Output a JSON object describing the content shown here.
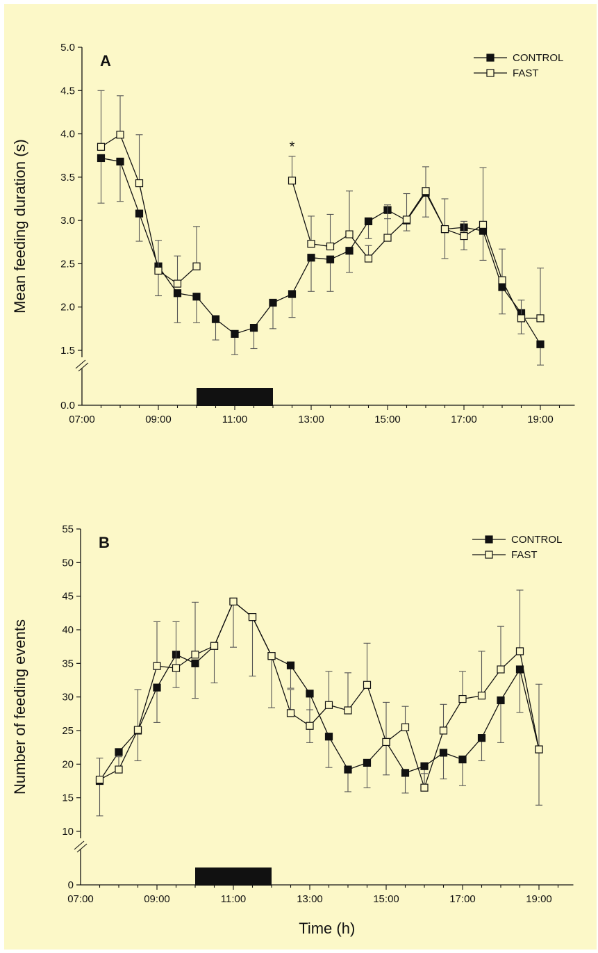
{
  "figure": {
    "background": "#fcf8c8",
    "ink": "#111111",
    "errorbar_color": "#555555"
  },
  "chart_data": [
    {
      "type": "line",
      "panel_label": "A",
      "ylabel": "Mean feeding duration (s)",
      "xlabel": "",
      "x_tick_labels": [
        "07:00",
        "09:00",
        "11:00",
        "13:00",
        "15:00",
        "17:00",
        "19:00"
      ],
      "x_ticks": [
        7,
        9,
        11,
        13,
        15,
        17,
        19
      ],
      "xlim": [
        7,
        19.9
      ],
      "y_tick_labels": [
        "5.0",
        "4.5",
        "4.0",
        "3.5",
        "3.0",
        "2.5",
        "2.0",
        "1.5",
        "0.0"
      ],
      "y_ticks": [
        5.0,
        4.5,
        4.0,
        3.5,
        3.0,
        2.5,
        2.0,
        1.5
      ],
      "ylim": [
        1.5,
        5.0
      ],
      "y_break": true,
      "y_zero_label": "0.0",
      "dark_period": [
        10,
        12
      ],
      "legend": {
        "position": "top-right",
        "entries": [
          "CONTROL",
          "FAST"
        ]
      },
      "annotations": [
        {
          "text": "*",
          "x": 12.5,
          "y": 3.85
        }
      ],
      "series": [
        {
          "name": "CONTROL",
          "marker": "filled-square",
          "x": [
            7.5,
            8.0,
            8.5,
            9.0,
            9.5,
            10.0,
            10.5,
            11.0,
            11.5,
            12.0,
            12.5,
            13.0,
            13.5,
            14.0,
            14.5,
            15.0,
            15.5,
            16.0,
            16.5,
            17.0,
            17.5,
            18.0,
            18.5,
            19.0
          ],
          "y": [
            3.72,
            3.68,
            3.08,
            2.47,
            2.16,
            2.12,
            1.86,
            1.69,
            1.76,
            2.05,
            2.15,
            2.57,
            2.55,
            2.65,
            2.99,
            3.12,
            3.0,
            3.32,
            2.9,
            2.92,
            2.88,
            2.23,
            1.93,
            1.57
          ],
          "error": [
            0.52,
            0.46,
            0.32,
            0.34,
            0.34,
            0.3,
            0.24,
            0.24,
            0.24,
            0.3,
            0.27,
            0.39,
            0.37,
            0.25,
            0.2,
            0.1,
            0.12,
            0.28,
            0.34,
            0.26,
            0.34,
            0.31,
            0.24,
            0.24
          ]
        },
        {
          "name": "FAST",
          "marker": "open-square",
          "segments": [
            {
              "x": [
                7.5,
                8.0,
                8.5,
                9.0,
                9.5,
                10.0
              ],
              "y": [
                3.85,
                3.99,
                3.43,
                2.42,
                2.27,
                2.47
              ],
              "error": [
                0.65,
                0.45,
                0.56,
                0.35,
                0.32,
                0.46
              ]
            },
            {
              "x": [
                12.5,
                13.0,
                13.5,
                14.0,
                14.5,
                15.0,
                15.5,
                16.0,
                16.5,
                17.0,
                17.5,
                18.0,
                18.5,
                19.0
              ],
              "y": [
                3.46,
                2.73,
                2.7,
                2.84,
                2.56,
                2.8,
                3.01,
                3.34,
                2.9,
                2.82,
                2.95,
                2.31,
                1.87,
                1.87
              ],
              "error": [
                0.28,
                0.32,
                0.37,
                0.5,
                0.15,
                0.38,
                0.3,
                0.28,
                0.35,
                0.17,
                0.66,
                0.36,
                0.21,
                0.58
              ]
            }
          ]
        }
      ]
    },
    {
      "type": "line",
      "panel_label": "B",
      "ylabel": "Number of feeding events",
      "xlabel": "Time (h)",
      "x_tick_labels": [
        "07:00",
        "09:00",
        "11:00",
        "13:00",
        "15:00",
        "17:00",
        "19:00"
      ],
      "x_ticks": [
        7,
        9,
        11,
        13,
        15,
        17,
        19
      ],
      "xlim": [
        7,
        19.9
      ],
      "y_tick_labels": [
        "55",
        "50",
        "45",
        "40",
        "35",
        "30",
        "25",
        "20",
        "15",
        "10",
        "0"
      ],
      "y_ticks": [
        55,
        50,
        45,
        40,
        35,
        30,
        25,
        20,
        15,
        10
      ],
      "ylim": [
        10,
        55
      ],
      "y_break": true,
      "y_zero_label": "0",
      "dark_period": [
        10,
        12
      ],
      "legend": {
        "position": "top-right",
        "entries": [
          "CONTROL",
          "FAST"
        ]
      },
      "series": [
        {
          "name": "CONTROL",
          "marker": "filled-square",
          "segments": [
            {
              "x": [
                7.5,
                8.0,
                8.5,
                9.0,
                9.5,
                10.0,
                10.5,
                11.0,
                11.5,
                12.0,
                12.5,
                13.0,
                13.5,
                14.0,
                14.5,
                15.0,
                15.5,
                16.0,
                16.5,
                17.0,
                17.5,
                18.0,
                18.5,
                19.0
              ],
              "y": [
                17.5,
                21.8,
                25.0,
                31.4,
                36.3,
                35.0,
                37.6,
                44.2,
                41.9,
                36.1,
                34.7,
                30.5,
                24.1,
                19.2,
                20.2,
                23.3,
                18.7,
                19.7,
                21.7,
                20.7,
                23.9,
                29.5,
                34.1,
                22.2
              ],
              "error": [
                5.2,
                0,
                4.5,
                5.2,
                4.9,
                5.2,
                5.5,
                6.8,
                8.8,
                7.7,
                3.4,
                7.3,
                4.6,
                3.3,
                3.7,
                4.9,
                3.0,
                3.3,
                3.9,
                3.9,
                3.4,
                6.3,
                6.4,
                8.3
              ]
            }
          ]
        },
        {
          "name": "FAST",
          "marker": "open-square",
          "segments": [
            {
              "x": [
                7.5,
                8.0,
                8.5,
                9.0,
                9.5,
                10.0,
                10.5,
                11.0,
                11.5,
                12.0,
                12.5,
                13.0,
                13.5,
                14.0,
                14.5,
                15.0,
                15.5,
                16.0,
                16.5,
                17.0,
                17.5,
                18.0,
                18.5,
                19.0
              ],
              "y": [
                17.7,
                19.2,
                25.1,
                34.6,
                34.3,
                36.3,
                37.6,
                44.2,
                41.9,
                36.1,
                27.6,
                25.7,
                28.8,
                28.0,
                31.8,
                23.3,
                25.5,
                16.5,
                25.0,
                29.7,
                30.2,
                34.1,
                36.8,
                22.2
              ],
              "error": [
                3.2,
                1.9,
                6.0,
                6.6,
                6.9,
                7.8,
                0,
                0,
                0,
                0,
                3.5,
                2.4,
                5.0,
                5.6,
                6.2,
                5.9,
                3.1,
                2.1,
                3.9,
                4.1,
                6.6,
                6.4,
                9.1,
                9.7
              ]
            }
          ]
        }
      ]
    }
  ]
}
